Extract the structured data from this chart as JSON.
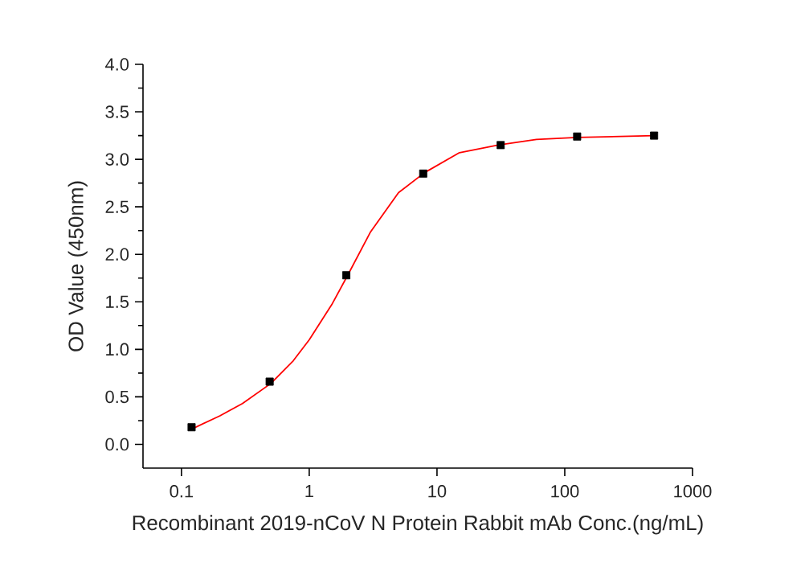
{
  "chart_data": {
    "type": "scatter",
    "xlabel": "Recombinant 2019-nCoV N Protein Rabbit mAb Conc.(ng/mL)",
    "ylabel": "OD Value (450nm)",
    "log": "x",
    "xlim": [
      0.05,
      1000
    ],
    "ylim": [
      -0.25,
      4.0
    ],
    "xticks": [
      0.1,
      1,
      10,
      100,
      1000
    ],
    "yticks": [
      {
        "value": 0,
        "label": "0.0"
      },
      {
        "value": 0.5,
        "label": "0.5"
      },
      {
        "value": 1,
        "label": "1.0"
      },
      {
        "value": 1.5,
        "label": "1.5"
      },
      {
        "value": 2,
        "label": "2.0"
      },
      {
        "value": 2.5,
        "label": "2.5"
      },
      {
        "value": 3,
        "label": "3.0"
      },
      {
        "value": 3.5,
        "label": "3.5"
      },
      {
        "value": 4,
        "label": "4.0"
      }
    ],
    "grid": false,
    "marker": "square",
    "series": [
      {
        "color": "#000000",
        "x": [
          0.12,
          0.49,
          1.95,
          7.8,
          31.5,
          125,
          500
        ],
        "values": [
          0.18,
          0.66,
          1.78,
          2.85,
          3.15,
          3.24,
          3.25
        ]
      },
      {
        "type": "line",
        "color": "#ff0000",
        "marker": "none",
        "line_style": "solid",
        "x": [
          0.12,
          0.2,
          0.3,
          0.5,
          0.75,
          1,
          1.5,
          2,
          3,
          5,
          8,
          15,
          30,
          60,
          125,
          250,
          500
        ],
        "values": [
          0.16,
          0.3,
          0.43,
          0.64,
          0.88,
          1.1,
          1.47,
          1.78,
          2.23,
          2.65,
          2.86,
          3.07,
          3.15,
          3.21,
          3.23,
          3.24,
          3.25
        ]
      }
    ]
  }
}
